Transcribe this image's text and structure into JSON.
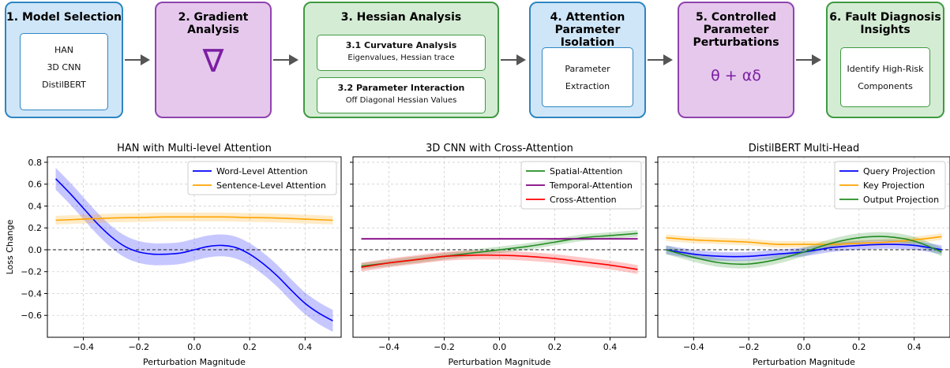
{
  "pipeline": {
    "steps": [
      {
        "title": "1. Model Selection",
        "items": [
          "HAN",
          "3D CNN",
          "DistilBERT"
        ]
      },
      {
        "title": "2. Gradient Analysis",
        "symbol": "∇"
      },
      {
        "title": "3. Hessian Analysis",
        "sub1_title": "3.1 Curvature Analysis",
        "sub1_text": "Eigenvalues, Hessian trace",
        "sub2_title": "3.2 Parameter Interaction",
        "sub2_text": "Off Diagonal Hessian Values"
      },
      {
        "title_lines": [
          "4. Attention",
          "Parameter Isolation"
        ],
        "inner_lines": [
          "Parameter",
          "Extraction"
        ]
      },
      {
        "title_lines": [
          "5. Controlled",
          "Parameter",
          "Perturbations"
        ],
        "symbol": "θ + αδ"
      },
      {
        "title_lines": [
          "6. Fault Diagnosis",
          "Insights"
        ],
        "inner_lines": [
          "Identify High-Risk",
          "Components"
        ]
      }
    ],
    "colors": {
      "blue_fill": "#cfe6f8",
      "blue_border": "#2e86c1",
      "purple_fill": "#e6c8ec",
      "purple_border": "#8e44ad",
      "green_fill": "#d5ecd4",
      "green_border": "#3f9a42"
    }
  },
  "chart_data": [
    {
      "type": "line",
      "title": "HAN with Multi-level Attention",
      "xlabel": "Perturbation Magnitude",
      "ylabel": "Loss Change",
      "xlim": [
        -0.53,
        0.53
      ],
      "ylim": [
        -0.8,
        0.85
      ],
      "xticks": [
        -0.4,
        -0.2,
        0.0,
        0.2,
        0.4
      ],
      "yticks": [
        -0.6,
        -0.4,
        -0.2,
        0.0,
        0.2,
        0.4,
        0.6,
        0.8
      ],
      "grid": true,
      "legend": "top-right",
      "series": [
        {
          "name": "Word-Level Attention",
          "color": "#0000ff",
          "x": [
            -0.5,
            -0.45,
            -0.4,
            -0.35,
            -0.3,
            -0.25,
            -0.2,
            -0.15,
            -0.1,
            -0.05,
            0.0,
            0.05,
            0.1,
            0.15,
            0.2,
            0.25,
            0.3,
            0.35,
            0.4,
            0.45,
            0.5
          ],
          "y": [
            0.65,
            0.52,
            0.38,
            0.24,
            0.12,
            0.03,
            -0.02,
            -0.04,
            -0.04,
            -0.03,
            0.0,
            0.03,
            0.04,
            0.02,
            -0.04,
            -0.13,
            -0.24,
            -0.37,
            -0.49,
            -0.58,
            -0.65
          ],
          "band": 0.1
        },
        {
          "name": "Sentence-Level Attention",
          "color": "#ffa500",
          "x": [
            -0.5,
            -0.4,
            -0.3,
            -0.2,
            -0.1,
            0.0,
            0.1,
            0.2,
            0.3,
            0.4,
            0.5
          ],
          "y": [
            0.27,
            0.28,
            0.29,
            0.295,
            0.3,
            0.3,
            0.3,
            0.295,
            0.29,
            0.28,
            0.27
          ],
          "band": 0.04
        }
      ]
    },
    {
      "type": "line",
      "title": "3D CNN with Cross-Attention",
      "xlabel": "Perturbation Magnitude",
      "ylabel": "",
      "xlim": [
        -0.53,
        0.53
      ],
      "ylim": [
        -0.8,
        0.85
      ],
      "xticks": [
        -0.4,
        -0.2,
        0.0,
        0.2,
        0.4
      ],
      "yticks": [],
      "grid": true,
      "legend": "top-right",
      "series": [
        {
          "name": "Spatial-Attention",
          "color": "#228b22",
          "x": [
            -0.5,
            -0.4,
            -0.3,
            -0.2,
            -0.1,
            0.0,
            0.1,
            0.2,
            0.3,
            0.4,
            0.5
          ],
          "y": [
            -0.15,
            -0.12,
            -0.09,
            -0.06,
            -0.03,
            0.0,
            0.03,
            0.07,
            0.11,
            0.13,
            0.15
          ],
          "band": 0.03
        },
        {
          "name": "Temporal-Attention",
          "color": "#800080",
          "x": [
            -0.5,
            -0.25,
            0.0,
            0.25,
            0.5
          ],
          "y": [
            0.1,
            0.1,
            0.1,
            0.1,
            0.1
          ],
          "band": 0.01
        },
        {
          "name": "Cross-Attention",
          "color": "#ff0000",
          "x": [
            -0.5,
            -0.4,
            -0.3,
            -0.2,
            -0.1,
            0.0,
            0.1,
            0.2,
            0.3,
            0.4,
            0.5
          ],
          "y": [
            -0.16,
            -0.12,
            -0.09,
            -0.06,
            -0.05,
            -0.05,
            -0.06,
            -0.08,
            -0.11,
            -0.14,
            -0.18
          ],
          "band": 0.04
        }
      ]
    },
    {
      "type": "line",
      "title": "DistilBERT Multi-Head",
      "xlabel": "Perturbation Magnitude",
      "ylabel": "",
      "xlim": [
        -0.53,
        0.53
      ],
      "ylim": [
        -0.8,
        0.85
      ],
      "xticks": [
        -0.4,
        -0.2,
        0.0,
        0.2,
        0.4
      ],
      "yticks": [],
      "grid": true,
      "legend": "top-right",
      "series": [
        {
          "name": "Query Projection",
          "color": "#0000ff",
          "x": [
            -0.5,
            -0.4,
            -0.3,
            -0.2,
            -0.1,
            0.0,
            0.1,
            0.2,
            0.3,
            0.4,
            0.5
          ],
          "y": [
            0.0,
            -0.04,
            -0.06,
            -0.06,
            -0.04,
            -0.02,
            0.02,
            0.04,
            0.05,
            0.04,
            0.0
          ],
          "band": 0.04
        },
        {
          "name": "Key Projection",
          "color": "#ffa500",
          "x": [
            -0.5,
            -0.4,
            -0.3,
            -0.2,
            -0.1,
            0.0,
            0.1,
            0.2,
            0.3,
            0.4,
            0.5
          ],
          "y": [
            0.11,
            0.09,
            0.08,
            0.07,
            0.05,
            0.05,
            0.05,
            0.06,
            0.07,
            0.09,
            0.12
          ],
          "band": 0.03
        },
        {
          "name": "Output Projection",
          "color": "#228b22",
          "x": [
            -0.5,
            -0.4,
            -0.3,
            -0.2,
            -0.1,
            0.0,
            0.1,
            0.2,
            0.3,
            0.4,
            0.5
          ],
          "y": [
            0.0,
            -0.07,
            -0.12,
            -0.13,
            -0.09,
            -0.02,
            0.06,
            0.11,
            0.12,
            0.08,
            -0.02
          ],
          "band": 0.04
        }
      ]
    }
  ]
}
